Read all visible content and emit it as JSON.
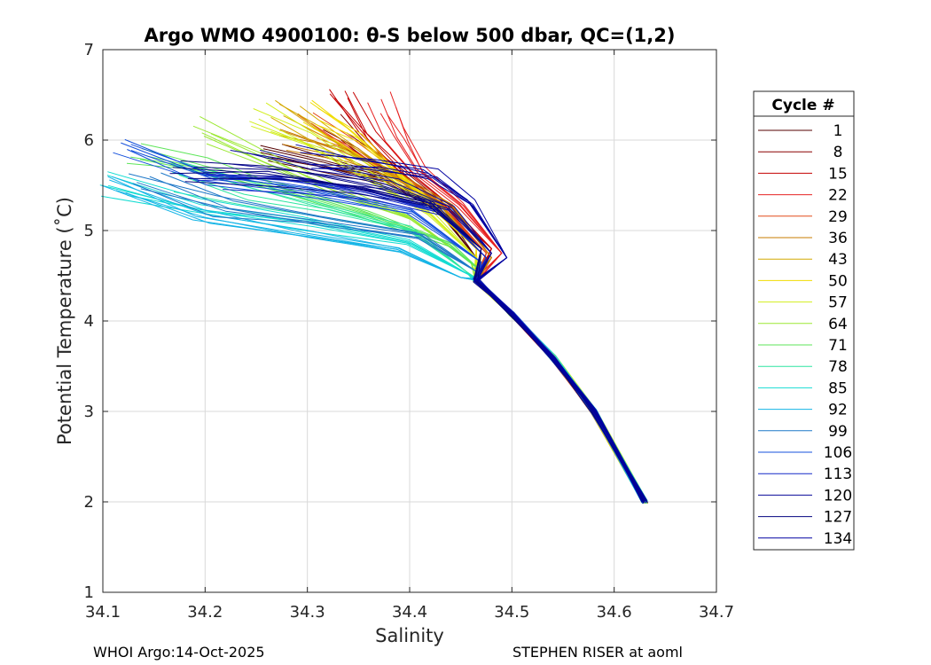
{
  "chart_data": {
    "type": "line",
    "title": "Argo WMO 4900100: θ-S below 500 dbar,  QC=(1,2)",
    "xlabel": "Salinity",
    "ylabel": "Potential Temperature (˚C)",
    "xlim": [
      34.1,
      34.7
    ],
    "ylim": [
      1,
      7
    ],
    "xticks": [
      "34.1",
      "34.2",
      "34.3",
      "34.4",
      "34.5",
      "34.6",
      "34.7"
    ],
    "yticks": [
      "1",
      "2",
      "3",
      "4",
      "5",
      "6",
      "7"
    ],
    "grid": true,
    "colormap": "jet",
    "legend": {
      "title": "Cycle #",
      "placement": "right-outside",
      "entries": [
        {
          "label": "1",
          "color": "#550000"
        },
        {
          "label": "8",
          "color": "#8a0000"
        },
        {
          "label": "15",
          "color": "#c40000"
        },
        {
          "label": "22",
          "color": "#e62222"
        },
        {
          "label": "29",
          "color": "#e24a1a"
        },
        {
          "label": "36",
          "color": "#c77c00"
        },
        {
          "label": "43",
          "color": "#d4a800"
        },
        {
          "label": "50",
          "color": "#f0dc00"
        },
        {
          "label": "57",
          "color": "#d2ee1e"
        },
        {
          "label": "64",
          "color": "#9be832"
        },
        {
          "label": "71",
          "color": "#5ee65a"
        },
        {
          "label": "78",
          "color": "#2ee6a0"
        },
        {
          "label": "85",
          "color": "#14dcd2"
        },
        {
          "label": "92",
          "color": "#14b4e6"
        },
        {
          "label": "99",
          "color": "#1e78c8"
        },
        {
          "label": "106",
          "color": "#1450dc"
        },
        {
          "label": "113",
          "color": "#1428c8"
        },
        {
          "label": "120",
          "color": "#0a0a9a"
        },
        {
          "label": "127",
          "color": "#050580"
        },
        {
          "label": "134",
          "color": "#0000a0"
        }
      ]
    },
    "common_deep_path": [
      [
        34.465,
        4.45
      ],
      [
        34.5,
        4.08
      ],
      [
        34.54,
        3.6
      ],
      [
        34.58,
        3.0
      ],
      [
        34.63,
        2.0
      ]
    ],
    "series": [
      {
        "name": "1",
        "points": [
          [
            34.265,
            5.82
          ],
          [
            34.32,
            5.68
          ],
          [
            34.38,
            5.5
          ],
          [
            34.43,
            5.2
          ],
          [
            34.465,
            4.7
          ]
        ]
      },
      {
        "name": "8",
        "points": [
          [
            34.33,
            6.1
          ],
          [
            34.36,
            5.85
          ],
          [
            34.39,
            5.6
          ],
          [
            34.43,
            5.3
          ],
          [
            34.47,
            4.8
          ]
        ]
      },
      {
        "name": "15",
        "points": [
          [
            34.335,
            6.55
          ],
          [
            34.36,
            6.1
          ],
          [
            34.4,
            5.6
          ],
          [
            34.44,
            5.25
          ],
          [
            34.48,
            4.8
          ]
        ]
      },
      {
        "name": "22",
        "points": [
          [
            34.375,
            6.45
          ],
          [
            34.39,
            6.1
          ],
          [
            34.41,
            5.7
          ],
          [
            34.45,
            5.3
          ],
          [
            34.49,
            4.75
          ]
        ]
      },
      {
        "name": "29",
        "points": [
          [
            34.3,
            6.2
          ],
          [
            34.34,
            5.95
          ],
          [
            34.38,
            5.65
          ],
          [
            34.43,
            5.3
          ],
          [
            34.475,
            4.75
          ]
        ]
      },
      {
        "name": "36",
        "points": [
          [
            34.27,
            5.95
          ],
          [
            34.33,
            5.8
          ],
          [
            34.39,
            5.55
          ],
          [
            34.44,
            5.25
          ],
          [
            34.48,
            4.7
          ]
        ]
      },
      {
        "name": "43",
        "points": [
          [
            34.28,
            6.25
          ],
          [
            34.33,
            5.95
          ],
          [
            34.38,
            5.6
          ],
          [
            34.43,
            5.25
          ],
          [
            34.47,
            4.75
          ]
        ]
      },
      {
        "name": "50",
        "points": [
          [
            34.3,
            6.32
          ],
          [
            34.34,
            6.05
          ],
          [
            34.38,
            5.7
          ],
          [
            34.42,
            5.3
          ],
          [
            34.465,
            4.8
          ]
        ]
      },
      {
        "name": "57",
        "points": [
          [
            34.255,
            6.25
          ],
          [
            34.31,
            5.95
          ],
          [
            34.37,
            5.55
          ],
          [
            34.42,
            5.2
          ],
          [
            34.465,
            4.7
          ]
        ]
      },
      {
        "name": "64",
        "points": [
          [
            34.2,
            6.1
          ],
          [
            34.26,
            5.8
          ],
          [
            34.33,
            5.45
          ],
          [
            34.4,
            5.15
          ],
          [
            34.46,
            4.65
          ]
        ]
      },
      {
        "name": "71",
        "points": [
          [
            34.135,
            5.88
          ],
          [
            34.2,
            5.72
          ],
          [
            34.28,
            5.45
          ],
          [
            34.36,
            5.2
          ],
          [
            34.44,
            4.85
          ],
          [
            34.47,
            4.55
          ]
        ]
      },
      {
        "name": "78",
        "points": [
          [
            34.17,
            5.6
          ],
          [
            34.24,
            5.4
          ],
          [
            34.32,
            5.2
          ],
          [
            34.4,
            5.0
          ],
          [
            34.455,
            4.55
          ]
        ]
      },
      {
        "name": "85",
        "points": [
          [
            34.11,
            5.55
          ],
          [
            34.2,
            5.28
          ],
          [
            34.3,
            5.1
          ],
          [
            34.4,
            4.88
          ],
          [
            34.46,
            4.5
          ]
        ]
      },
      {
        "name": "92",
        "points": [
          [
            34.11,
            5.58
          ],
          [
            34.2,
            5.2
          ],
          [
            34.3,
            4.98
          ],
          [
            34.39,
            4.8
          ],
          [
            34.45,
            4.48
          ]
        ]
      },
      {
        "name": "99",
        "points": [
          [
            34.14,
            5.6
          ],
          [
            34.22,
            5.3
          ],
          [
            34.32,
            5.12
          ],
          [
            34.41,
            4.95
          ],
          [
            34.465,
            4.55
          ]
        ]
      },
      {
        "name": "106",
        "points": [
          [
            34.12,
            5.85
          ],
          [
            34.2,
            5.52
          ],
          [
            34.3,
            5.4
          ],
          [
            34.4,
            5.2
          ],
          [
            34.47,
            4.65
          ]
        ]
      },
      {
        "name": "113",
        "points": [
          [
            34.2,
            5.58
          ],
          [
            34.28,
            5.52
          ],
          [
            34.36,
            5.4
          ],
          [
            34.43,
            5.2
          ],
          [
            34.475,
            4.7
          ]
        ]
      },
      {
        "name": "120",
        "points": [
          [
            34.24,
            5.75
          ],
          [
            34.31,
            5.65
          ],
          [
            34.38,
            5.5
          ],
          [
            34.44,
            5.25
          ],
          [
            34.48,
            4.75
          ]
        ]
      },
      {
        "name": "127",
        "points": [
          [
            34.18,
            5.65
          ],
          [
            34.27,
            5.62
          ],
          [
            34.35,
            5.5
          ],
          [
            34.42,
            5.3
          ],
          [
            34.47,
            4.8
          ]
        ]
      },
      {
        "name": "134",
        "points": [
          [
            34.3,
            5.78
          ],
          [
            34.36,
            5.72
          ],
          [
            34.42,
            5.6
          ],
          [
            34.46,
            5.3
          ],
          [
            34.495,
            4.7
          ]
        ]
      }
    ]
  },
  "footer": {
    "left": "WHOI Argo:14-Oct-2025",
    "right": "STEPHEN RISER at aoml"
  }
}
